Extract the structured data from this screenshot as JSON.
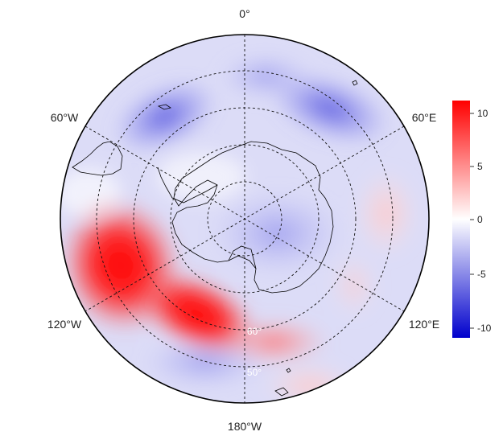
{
  "map": {
    "projection": "south-polar-stereographic",
    "longitude_labels": {
      "top": "0°",
      "upper_left": "60°W",
      "upper_right": "60°E",
      "lower_left": "120°W",
      "lower_right": "120°E",
      "bottom": "180°W"
    },
    "latitude_labels": {
      "inner": "60°",
      "outer": "50°"
    },
    "graticule_style": "dashed",
    "coastlines": "Antarctica, South America, southern islands"
  },
  "colorbar": {
    "ticks": [
      "10",
      "5",
      "0",
      "-5",
      "-10"
    ],
    "range": [
      -11,
      11
    ],
    "colors": {
      "high": "#ff0000",
      "mid": "#ffffff",
      "low": "#0000cc"
    }
  },
  "field_pattern": {
    "positive_anomaly": "band from 90°W to 150°W (Amundsen–Bellingshausen / Pacific sector), max ~+11",
    "weak_positive": "around 120°E–90°E and near 170°E",
    "negative_anomaly": "over the Antarctic interior, the South Atlantic (~30°W) and 30°E–60°E; min ~-8"
  }
}
